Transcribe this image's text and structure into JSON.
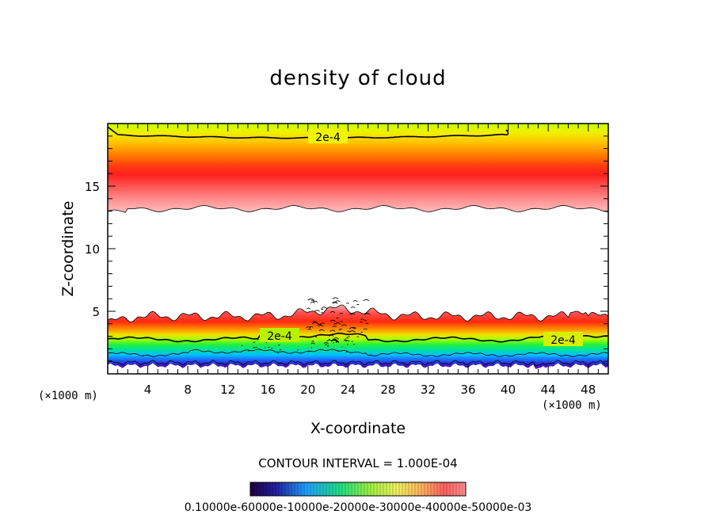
{
  "chart_data": {
    "type": "heatmap",
    "title": "density of cloud",
    "xlabel": "X-coordinate",
    "ylabel": "Z-coordinate",
    "x_unit": "(×1000 m)",
    "xlim": [
      0,
      50
    ],
    "ylim": [
      0,
      20
    ],
    "x_ticks": [
      4,
      8,
      12,
      16,
      20,
      24,
      28,
      32,
      36,
      40,
      44,
      48
    ],
    "y_ticks": [
      5,
      10,
      15
    ],
    "contour_interval_text": "CONTOUR INTERVAL = 1.000E-04",
    "contour_labels": [
      "2e-4",
      "2e-4",
      "2e-4"
    ],
    "colorbar_label_text": "0.10000e-60000e-10000e-20000e-30000e-40000e-50000e-03",
    "layers": [
      {
        "name": "upper",
        "z_bottom": 13.2,
        "z_peak": 15.1,
        "z_top": 20.0
      },
      {
        "name": "lower",
        "z_bottom": 0.6,
        "z_peak": 4.3,
        "z_top": 5.5
      }
    ]
  }
}
